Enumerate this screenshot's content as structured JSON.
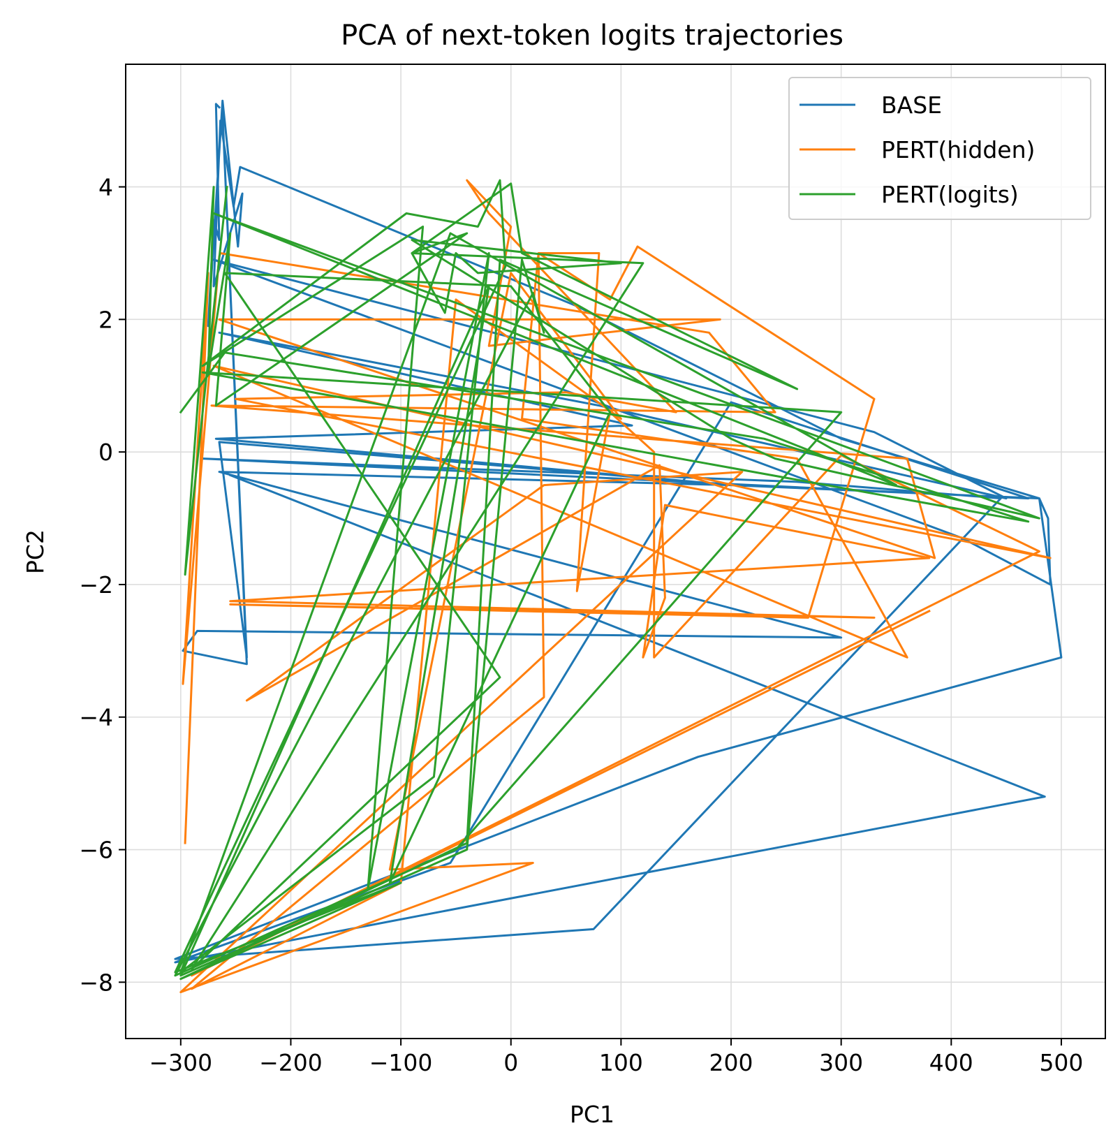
{
  "chart_data": {
    "type": "line",
    "title": "PCA of next-token logits trajectories",
    "xlabel": "PC1",
    "ylabel": "PC2",
    "xlim": [
      -350,
      540
    ],
    "ylim": [
      -8.85,
      5.85
    ],
    "xticks": [
      -300,
      -200,
      -100,
      0,
      100,
      200,
      300,
      400,
      500
    ],
    "yticks": [
      -8,
      -6,
      -4,
      -2,
      0,
      2,
      4
    ],
    "grid": true,
    "legend_position": "top-right",
    "series": [
      {
        "name": "BASE",
        "color": "#1f77b4",
        "points": [
          [
            -265,
            5.2
          ],
          [
            -268,
            5.25
          ],
          [
            -265,
            3.2
          ],
          [
            -270,
            3.5
          ],
          [
            -275,
            1.9
          ],
          [
            -262,
            5.3
          ],
          [
            -248,
            3.1
          ],
          [
            -244,
            3.9
          ],
          [
            -270,
            2.5
          ],
          [
            -264,
            5.0
          ],
          [
            -252,
            3.7
          ],
          [
            -246,
            4.3
          ],
          [
            60,
            2.2
          ],
          [
            300,
            0.2
          ],
          [
            480,
            -0.7
          ],
          [
            488,
            -1.0
          ],
          [
            490,
            -2.0
          ],
          [
            410,
            -1.3
          ],
          [
            -270,
            2.9
          ],
          [
            330,
            0.3
          ],
          [
            450,
            -0.7
          ],
          [
            80,
            0.7
          ],
          [
            -265,
            1.8
          ],
          [
            110,
            0.4
          ],
          [
            -268,
            0.2
          ],
          [
            200,
            -0.5
          ],
          [
            -265,
            -0.3
          ],
          [
            300,
            -2.8
          ],
          [
            -285,
            -2.7
          ],
          [
            -298,
            -3.0
          ],
          [
            -240,
            -3.2
          ],
          [
            -262,
            5.1
          ],
          [
            -240,
            -3.1
          ],
          [
            -265,
            0.15
          ],
          [
            200,
            -0.5
          ],
          [
            480,
            -0.7
          ],
          [
            500,
            -3.1
          ],
          [
            170,
            -4.6
          ],
          [
            -305,
            -7.65
          ],
          [
            75,
            -7.2
          ],
          [
            445,
            -0.7
          ],
          [
            260,
            -0.45
          ],
          [
            -280,
            -0.1
          ],
          [
            470,
            -0.7
          ],
          [
            200,
            0.75
          ],
          [
            -55,
            -6.2
          ],
          [
            -305,
            -7.7
          ],
          [
            485,
            -5.2
          ],
          [
            -255,
            -0.35
          ]
        ]
      },
      {
        "name": "PERT(hidden)",
        "color": "#ff7f0e",
        "points": [
          [
            -296,
            -5.9
          ],
          [
            -275,
            2.7
          ],
          [
            -298,
            -3.5
          ],
          [
            -265,
            2.95
          ],
          [
            -264,
            3.0
          ],
          [
            180,
            1.8
          ],
          [
            240,
            0.6
          ],
          [
            -272,
            0.7
          ],
          [
            360,
            -0.1
          ],
          [
            385,
            -1.6
          ],
          [
            -265,
            2.0
          ],
          [
            190,
            2.0
          ],
          [
            -20,
            1.6
          ],
          [
            0,
            3.4
          ],
          [
            -40,
            4.1
          ],
          [
            -20,
            3.6
          ],
          [
            150,
            0.6
          ],
          [
            50,
            0.9
          ],
          [
            -250,
            0.8
          ],
          [
            490,
            -1.6
          ],
          [
            -270,
            1.3
          ],
          [
            360,
            -3.1
          ],
          [
            260,
            -0.1
          ],
          [
            10,
            0.5
          ],
          [
            25,
            3.0
          ],
          [
            90,
            2.3
          ],
          [
            115,
            3.1
          ],
          [
            330,
            0.8
          ],
          [
            270,
            -2.5
          ],
          [
            -255,
            -2.3
          ],
          [
            330,
            -2.5
          ],
          [
            -255,
            -2.25
          ],
          [
            380,
            -1.6
          ],
          [
            140,
            -0.8
          ],
          [
            120,
            -3.1
          ],
          [
            140,
            -2.2
          ],
          [
            135,
            -0.2
          ],
          [
            -240,
            -3.75
          ],
          [
            30,
            -0.5
          ],
          [
            210,
            -0.3
          ],
          [
            -300,
            -8.15
          ],
          [
            20,
            -6.2
          ],
          [
            -110,
            -6.3
          ],
          [
            0,
            2.7
          ],
          [
            100,
            0.5
          ],
          [
            -50,
            2.3
          ],
          [
            -100,
            -6.5
          ],
          [
            -290,
            -8.1
          ],
          [
            30,
            -3.7
          ],
          [
            25,
            3.0
          ],
          [
            80,
            3.0
          ],
          [
            60,
            -2.1
          ],
          [
            90,
            0.6
          ],
          [
            130,
            0.0
          ],
          [
            130,
            -3.1
          ],
          [
            300,
            -0.05
          ],
          [
            480,
            -1.5
          ],
          [
            -290,
            -7.9
          ],
          [
            380,
            -2.4
          ]
        ]
      },
      {
        "name": "PERT(logits)",
        "color": "#2ca02c",
        "points": [
          [
            -258,
            4.0
          ],
          [
            -296,
            -1.85
          ],
          [
            -270,
            4.0
          ],
          [
            -275,
            1.2
          ],
          [
            -255,
            3.3
          ],
          [
            -268,
            0.7
          ],
          [
            -40,
            3.3
          ],
          [
            -90,
            3.0
          ],
          [
            -60,
            2.1
          ],
          [
            -50,
            3.0
          ],
          [
            -30,
            2.7
          ],
          [
            100,
            2.85
          ],
          [
            -90,
            3.2
          ],
          [
            200,
            0.2
          ],
          [
            240,
            -0.1
          ],
          [
            480,
            -1.0
          ],
          [
            -270,
            3.6
          ],
          [
            350,
            -0.5
          ],
          [
            -55,
            3.3
          ],
          [
            -300,
            -7.85
          ],
          [
            -70,
            -4.9
          ],
          [
            -20,
            3.0
          ],
          [
            -130,
            -6.6
          ],
          [
            -80,
            3.4
          ],
          [
            -280,
            1.3
          ],
          [
            -95,
            3.6
          ],
          [
            -30,
            3.4
          ],
          [
            -10,
            4.1
          ],
          [
            -5,
            2.8
          ],
          [
            -305,
            -7.85
          ],
          [
            -100,
            -6.5
          ],
          [
            -300,
            -7.95
          ],
          [
            -40,
            -5.9
          ],
          [
            -10,
            2.9
          ],
          [
            260,
            0.95
          ],
          [
            10,
            3.0
          ],
          [
            0,
            4.05
          ],
          [
            -90,
            3.0
          ],
          [
            120,
            2.85
          ],
          [
            -290,
            -7.8
          ],
          [
            -10,
            -3.4
          ],
          [
            -260,
            2.7
          ],
          [
            0,
            2.5
          ],
          [
            90,
            0.6
          ],
          [
            -110,
            -6.5
          ],
          [
            -20,
            2.5
          ],
          [
            -300,
            -7.9
          ],
          [
            -40,
            -6.0
          ],
          [
            10,
            2.9
          ],
          [
            30,
            1.8
          ],
          [
            20,
            2.4
          ],
          [
            -305,
            -7.9
          ],
          [
            -50,
            -6.0
          ],
          [
            300,
            0.6
          ],
          [
            -280,
            1.2
          ],
          [
            470,
            -1.05
          ],
          [
            230,
            0.2
          ],
          [
            -260,
            1.5
          ],
          [
            -300,
            0.6
          ]
        ]
      }
    ]
  }
}
